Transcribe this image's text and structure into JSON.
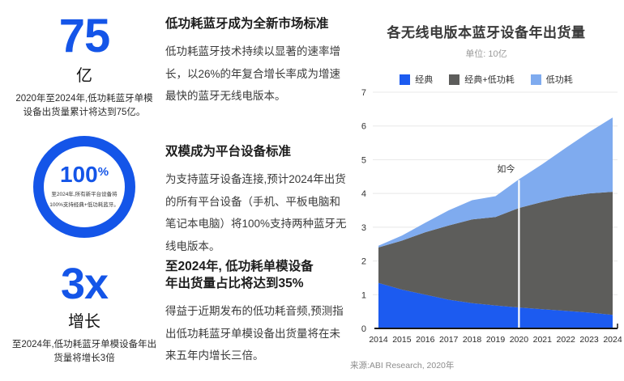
{
  "colors": {
    "brand_blue": "#1455e8",
    "classic_blue": "#1c5bf0",
    "dual_gray": "#5d5d5b",
    "le_blue": "#7fabef",
    "grid": "#e8e8e8",
    "axis": "#161616",
    "now_line": "#ffffff"
  },
  "stats": [
    {
      "value": "75",
      "unit": "亿",
      "caption": "2020年至2024年,低功耗蓝牙单模设备出货量累计将达到75亿。",
      "heading": "低功耗蓝牙成为全新市场标准",
      "body": "低功耗蓝牙技术持续以显著的速率增长，以26%的年复合增长率成为增速最快的蓝牙无线电版本。"
    },
    {
      "value": "100",
      "percent": "%",
      "note_line1": "至2024年,所有新平台设备将",
      "note_line2": "100%支持经典+低功耗蓝牙。",
      "heading": "双模成为平台设备标准",
      "body": "为支持蓝牙设备连接,预计2024年出货的所有平台设备（手机、平板电脑和笔记本电脑）将100%支持两种蓝牙无线电版本。"
    },
    {
      "value": "3x",
      "unit": "增长",
      "caption": "至2024年,低功耗蓝牙单模设备年出货量将增长3倍",
      "heading_line1": "至2024年, 低功耗单模设备",
      "heading_line2": "年出货量占比将达到35%",
      "body": "得益于近期发布的低功耗音频,预测指出低功耗蓝牙单模设备出货量将在未来五年内增长三倍。"
    }
  ],
  "chart": {
    "title": "各无线电版本蓝牙设备年出货量",
    "subtitle": "单位: 10亿",
    "source": "来源:ABI Research, 2020年"
  },
  "chart_data": {
    "type": "area",
    "stacked": true,
    "title": "各无线电版本蓝牙设备年出货量",
    "x": [
      "2014",
      "2015",
      "2016",
      "2017",
      "2018",
      "2019",
      "2020",
      "2021",
      "2022",
      "2023",
      "2024"
    ],
    "series": [
      {
        "name": "经典",
        "color": "#1c5bf0",
        "values": [
          1.35,
          1.15,
          1.0,
          0.85,
          0.75,
          0.68,
          0.62,
          0.57,
          0.52,
          0.47,
          0.4
        ]
      },
      {
        "name": "经典+低功耗",
        "color": "#5d5d5b",
        "values": [
          1.05,
          1.45,
          1.85,
          2.2,
          2.48,
          2.62,
          2.95,
          3.18,
          3.38,
          3.53,
          3.65
        ]
      },
      {
        "name": "低功耗",
        "color": "#7fabef",
        "values": [
          0.05,
          0.15,
          0.28,
          0.45,
          0.57,
          0.62,
          0.85,
          1.12,
          1.45,
          1.82,
          2.2
        ]
      }
    ],
    "xlabel": "",
    "ylabel": "",
    "ylim": [
      0,
      7
    ],
    "yticks": [
      0,
      1,
      2,
      3,
      4,
      5,
      6,
      7
    ],
    "grid": true,
    "legend_position": "top",
    "annotation": {
      "label": "如今",
      "x": "2020"
    }
  }
}
